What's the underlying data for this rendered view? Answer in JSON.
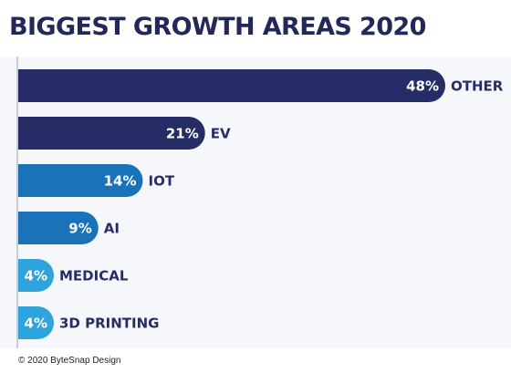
{
  "header": {
    "title": "BIGGEST GROWTH AREAS 2020"
  },
  "footer": {
    "credit": "© 2020 ByteSnap Design"
  },
  "colors": {
    "dark_navy": "#262d66",
    "blue": "#1a72b8",
    "light_blue": "#2ea3dc",
    "label_text": "#262d66",
    "value_text": "#ffffff",
    "background": "#f6f7fb"
  },
  "chart_data": {
    "type": "bar",
    "orientation": "horizontal",
    "title": "BIGGEST GROWTH AREAS 2020",
    "xlabel": "",
    "ylabel": "",
    "unit": "%",
    "grid": false,
    "xlim": [
      0,
      48
    ],
    "categories": [
      "OTHER",
      "EV",
      "IOT",
      "AI",
      "MEDICAL",
      "3D PRINTING"
    ],
    "values": [
      48,
      21,
      14,
      9,
      4,
      4
    ],
    "value_labels": [
      "48%",
      "21%",
      "14%",
      "9%",
      "4%",
      "4%"
    ],
    "bar_colors": [
      "#262d66",
      "#262d66",
      "#1a72b8",
      "#1a72b8",
      "#2ea3dc",
      "#2ea3dc"
    ]
  }
}
